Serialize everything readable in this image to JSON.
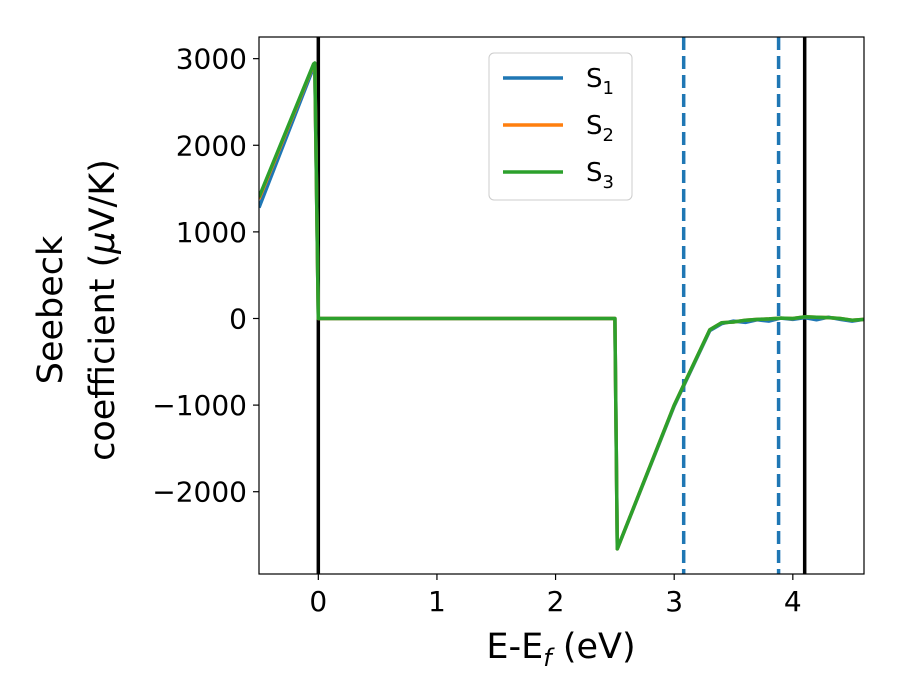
{
  "chart_data": {
    "type": "line",
    "xlabel": "E-E",
    "xlabel_sub": "f",
    "xlabel_unit": " (eV)",
    "ylabel_line1": "Seebeck",
    "ylabel_line2": "coefficient  (",
    "ylabel_mu": "μ",
    "ylabel_unit": "V/K)",
    "xlim": [
      -0.5,
      4.6
    ],
    "ylim": [
      -2950,
      3250
    ],
    "xticks": [
      0,
      1,
      2,
      3,
      4
    ],
    "xtick_labels": [
      "0",
      "1",
      "2",
      "3",
      "4"
    ],
    "yticks": [
      -2000,
      -1000,
      0,
      1000,
      2000,
      3000
    ],
    "ytick_labels": [
      "−2000",
      "−1000",
      "0",
      "1000",
      "2000",
      "3000"
    ],
    "grid": false,
    "legend_position": "upper-center",
    "vlines_solid": [
      0.0,
      4.1
    ],
    "vlines_dashed": [
      3.08,
      3.88
    ],
    "series": [
      {
        "name": "S",
        "sub": "1",
        "color": "#1f77b4",
        "x": [
          -0.5,
          -0.04,
          -0.03,
          0.0,
          2.5,
          2.52,
          3.0,
          3.3,
          3.4,
          3.5,
          3.6,
          3.7,
          3.8,
          3.9,
          4.0,
          4.1,
          4.2,
          4.3,
          4.4,
          4.5,
          4.6
        ],
        "y": [
          1280,
          2900,
          2910,
          0,
          0,
          -2660,
          -1010,
          -140,
          -60,
          -30,
          -45,
          -15,
          -30,
          5,
          -10,
          10,
          -15,
          15,
          -10,
          -30,
          -10
        ]
      },
      {
        "name": "S",
        "sub": "2",
        "color": "#ff7f0e",
        "x": [
          -0.5,
          -0.04,
          -0.03,
          0.0,
          2.5,
          2.52,
          3.0,
          3.3,
          3.4,
          3.5,
          3.6,
          3.7,
          3.8,
          3.9,
          4.0,
          4.1,
          4.2,
          4.3,
          4.4,
          4.5,
          4.6
        ],
        "y": [
          1380,
          2930,
          2940,
          0,
          0,
          -2660,
          -1000,
          -130,
          -50,
          -40,
          -20,
          -10,
          -5,
          5,
          0,
          20,
          15,
          10,
          0,
          -20,
          -10
        ]
      },
      {
        "name": "S",
        "sub": "3",
        "color": "#2ca02c",
        "x": [
          -0.5,
          -0.04,
          -0.03,
          0.0,
          2.5,
          2.52,
          3.0,
          3.3,
          3.4,
          3.5,
          3.6,
          3.7,
          3.8,
          3.9,
          4.0,
          4.1,
          4.2,
          4.3,
          4.4,
          4.5,
          4.6
        ],
        "y": [
          1400,
          2940,
          2950,
          0,
          0,
          -2660,
          -1000,
          -130,
          -50,
          -40,
          -20,
          -10,
          -5,
          5,
          0,
          20,
          15,
          10,
          0,
          -20,
          -10
        ]
      }
    ]
  },
  "colors": {
    "vline_solid": "#000000",
    "vline_dashed": "#1f77b4"
  }
}
